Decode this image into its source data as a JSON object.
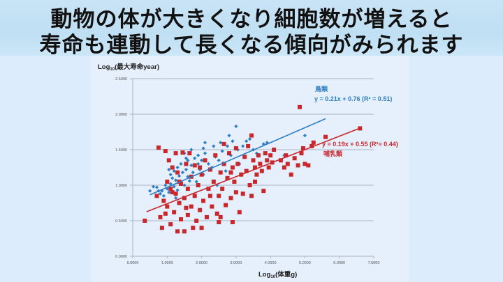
{
  "header": {
    "line1": "動物の体が大きくなり細胞数が増えると",
    "line2": "寿命も連動して長くなる傾向がみられます"
  },
  "colors": {
    "bird": "#2e7fc4",
    "mammal": "#c8282c",
    "grid": "#a9b4c2",
    "title_bg": "#c3e1f5",
    "panel_bg": "#e6effc"
  },
  "chart_data": {
    "type": "scatter",
    "title": "",
    "xlabel": "Log10(体重g)",
    "ylabel": "Log10(最大寿命year)",
    "xlim": [
      0,
      7
    ],
    "ylim": [
      0,
      2.5
    ],
    "x_ticks": [
      "0.0000",
      "1.0000",
      "2.0000",
      "3.0000",
      "4.0000",
      "5.0000",
      "6.0000",
      "7.0000"
    ],
    "y_ticks": [
      "0.0000",
      "0.5000",
      "1.0000",
      "1.5000",
      "2.0000",
      "2.5000"
    ],
    "grid": "horizontal",
    "series": [
      {
        "name": "鳥類",
        "marker": "diamond",
        "color": "#2e7fc4",
        "trendline": {
          "slope": 0.21,
          "intercept": 0.76,
          "x_range": [
            0.5,
            5.6
          ],
          "label": "y = 0.21x + 0.76 (R² = 0.51)",
          "r2": 0.51
        },
        "points": [
          [
            0.5,
            0.92
          ],
          [
            0.6,
            0.98
          ],
          [
            0.7,
            0.97
          ],
          [
            0.8,
            0.88
          ],
          [
            0.85,
            0.92
          ],
          [
            0.9,
            0.85
          ],
          [
            0.95,
            1.0
          ],
          [
            1.0,
            0.95
          ],
          [
            1.0,
            1.05
          ],
          [
            1.05,
            0.9
          ],
          [
            1.1,
            1.02
          ],
          [
            1.1,
            1.15
          ],
          [
            1.15,
            1.1
          ],
          [
            1.2,
            0.98
          ],
          [
            1.2,
            1.2
          ],
          [
            1.25,
            1.07
          ],
          [
            1.3,
            1.25
          ],
          [
            1.3,
            0.93
          ],
          [
            1.35,
            1.13
          ],
          [
            1.4,
            1.05
          ],
          [
            1.4,
            1.3
          ],
          [
            1.45,
            1.18
          ],
          [
            1.5,
            1.45
          ],
          [
            1.5,
            1.0
          ],
          [
            1.55,
            1.22
          ],
          [
            1.6,
            1.12
          ],
          [
            1.6,
            1.35
          ],
          [
            1.65,
            1.06
          ],
          [
            1.7,
            1.28
          ],
          [
            1.7,
            1.5
          ],
          [
            1.75,
            1.18
          ],
          [
            1.8,
            1.38
          ],
          [
            1.85,
            1.05
          ],
          [
            1.9,
            1.3
          ],
          [
            1.9,
            1.42
          ],
          [
            1.95,
            1.22
          ],
          [
            2.0,
            1.35
          ],
          [
            2.05,
            1.15
          ],
          [
            2.1,
            1.45
          ],
          [
            2.1,
            1.6
          ],
          [
            2.2,
            1.3
          ],
          [
            2.3,
            1.25
          ],
          [
            2.35,
            1.55
          ],
          [
            2.4,
            1.4
          ],
          [
            2.5,
            1.35
          ],
          [
            2.55,
            1.6
          ],
          [
            2.6,
            1.48
          ],
          [
            2.7,
            1.2
          ],
          [
            2.75,
            1.55
          ],
          [
            2.8,
            1.7
          ],
          [
            2.85,
            1.42
          ],
          [
            2.9,
            1.62
          ],
          [
            3.0,
            1.83
          ],
          [
            3.05,
            1.5
          ],
          [
            3.1,
            1.3
          ],
          [
            3.2,
            1.55
          ],
          [
            3.3,
            1.62
          ],
          [
            3.4,
            1.65
          ],
          [
            3.5,
            1.5
          ],
          [
            3.6,
            1.45
          ],
          [
            3.8,
            1.58
          ],
          [
            3.9,
            1.6
          ],
          [
            4.4,
            1.42
          ],
          [
            5.0,
            1.7
          ],
          [
            1.25,
            0.82
          ],
          [
            0.75,
            0.92
          ],
          [
            1.05,
            1.22
          ],
          [
            1.55,
            1.38
          ],
          [
            2.05,
            1.52
          ],
          [
            2.45,
            1.0
          ]
        ]
      },
      {
        "name": "哺乳類",
        "marker": "square",
        "color": "#c8282c",
        "trendline": {
          "slope": 0.19,
          "intercept": 0.55,
          "x_range": [
            0.4,
            6.6
          ],
          "label": "y = 0.19x + 0.55 (R²= 0.44)",
          "r2": 0.44
        },
        "points": [
          [
            0.35,
            0.5
          ],
          [
            0.7,
            0.85
          ],
          [
            0.75,
            1.53
          ],
          [
            0.8,
            0.55
          ],
          [
            0.85,
            0.4
          ],
          [
            0.9,
            0.78
          ],
          [
            0.95,
            0.6
          ],
          [
            0.95,
            1.48
          ],
          [
            1.0,
            0.7
          ],
          [
            1.0,
            1.05
          ],
          [
            1.05,
            1.35
          ],
          [
            1.1,
            0.95
          ],
          [
            1.1,
            0.45
          ],
          [
            1.15,
            1.25
          ],
          [
            1.2,
            0.62
          ],
          [
            1.25,
            0.88
          ],
          [
            1.3,
            0.35
          ],
          [
            1.3,
            1.18
          ],
          [
            1.35,
            0.75
          ],
          [
            1.4,
            0.52
          ],
          [
            1.4,
            1.02
          ],
          [
            1.45,
            1.46
          ],
          [
            1.5,
            0.35
          ],
          [
            1.5,
            0.82
          ],
          [
            1.55,
            1.3
          ],
          [
            1.6,
            0.58
          ],
          [
            1.6,
            0.95
          ],
          [
            1.65,
            1.45
          ],
          [
            1.7,
            0.7
          ],
          [
            1.7,
            1.12
          ],
          [
            1.75,
            0.4
          ],
          [
            1.8,
            0.85
          ],
          [
            1.8,
            1.28
          ],
          [
            1.85,
            0.5
          ],
          [
            1.9,
            1.0
          ],
          [
            1.95,
            0.65
          ],
          [
            2.0,
            0.4
          ],
          [
            2.0,
            1.15
          ],
          [
            2.05,
            0.78
          ],
          [
            2.1,
            1.35
          ],
          [
            2.15,
            0.55
          ],
          [
            2.2,
            0.95
          ],
          [
            2.25,
            1.22
          ],
          [
            2.3,
            0.7
          ],
          [
            2.35,
            1.05
          ],
          [
            2.4,
            1.42
          ],
          [
            2.45,
            0.6
          ],
          [
            2.5,
            0.85
          ],
          [
            2.5,
            0.48
          ],
          [
            2.55,
            1.18
          ],
          [
            2.6,
            0.95
          ],
          [
            2.65,
            1.3
          ],
          [
            2.7,
            0.72
          ],
          [
            2.75,
            1.1
          ],
          [
            2.8,
            1.45
          ],
          [
            2.85,
            0.82
          ],
          [
            2.9,
            1.25
          ],
          [
            2.9,
            0.48
          ],
          [
            2.95,
            1.05
          ],
          [
            3.0,
            0.9
          ],
          [
            3.0,
            1.52
          ],
          [
            3.05,
            1.3
          ],
          [
            3.1,
            0.62
          ],
          [
            3.15,
            1.15
          ],
          [
            3.2,
            0.88
          ],
          [
            3.25,
            1.4
          ],
          [
            3.3,
            1.2
          ],
          [
            3.35,
            1.55
          ],
          [
            3.4,
            1.0
          ],
          [
            3.45,
            0.85
          ],
          [
            3.5,
            1.35
          ],
          [
            3.55,
            1.25
          ],
          [
            3.6,
            1.15
          ],
          [
            3.65,
            1.42
          ],
          [
            3.7,
            1.3
          ],
          [
            3.75,
            1.2
          ],
          [
            3.8,
            0.92
          ],
          [
            3.85,
            1.45
          ],
          [
            3.9,
            1.35
          ],
          [
            3.95,
            1.25
          ],
          [
            4.0,
            1.42
          ],
          [
            4.05,
            1.32
          ],
          [
            4.1,
            1.5
          ],
          [
            4.3,
            1.35
          ],
          [
            4.4,
            1.25
          ],
          [
            4.45,
            1.42
          ],
          [
            4.5,
            1.3
          ],
          [
            4.6,
            1.15
          ],
          [
            4.7,
            1.38
          ],
          [
            4.8,
            1.28
          ],
          [
            4.85,
            2.1
          ],
          [
            4.9,
            1.45
          ],
          [
            5.0,
            1.3
          ],
          [
            5.1,
            1.28
          ],
          [
            5.2,
            1.55
          ],
          [
            5.25,
            1.6
          ],
          [
            5.6,
            1.68
          ],
          [
            6.6,
            1.8
          ],
          [
            4.95,
            1.52
          ],
          [
            3.45,
            1.7
          ],
          [
            2.55,
            0.55
          ],
          [
            1.15,
            0.9
          ],
          [
            1.35,
            1.05
          ],
          [
            2.25,
            0.85
          ],
          [
            2.65,
            1.58
          ],
          [
            3.55,
            1.05
          ],
          [
            1.95,
            1.25
          ],
          [
            1.25,
            1.45
          ],
          [
            2.85,
            1.18
          ],
          [
            1.55,
            0.68
          ]
        ]
      }
    ],
    "annotations": [
      {
        "text": "鳥類",
        "color": "#2e7fc4"
      },
      {
        "text": "y = 0.21x + 0.76 (R² = 0.51)",
        "color": "#2e7fc4"
      },
      {
        "text": "y = 0.19x + 0.55 (R²= 0.44)",
        "color": "#c8282c"
      },
      {
        "text": "哺乳類",
        "color": "#c8282c"
      }
    ]
  }
}
